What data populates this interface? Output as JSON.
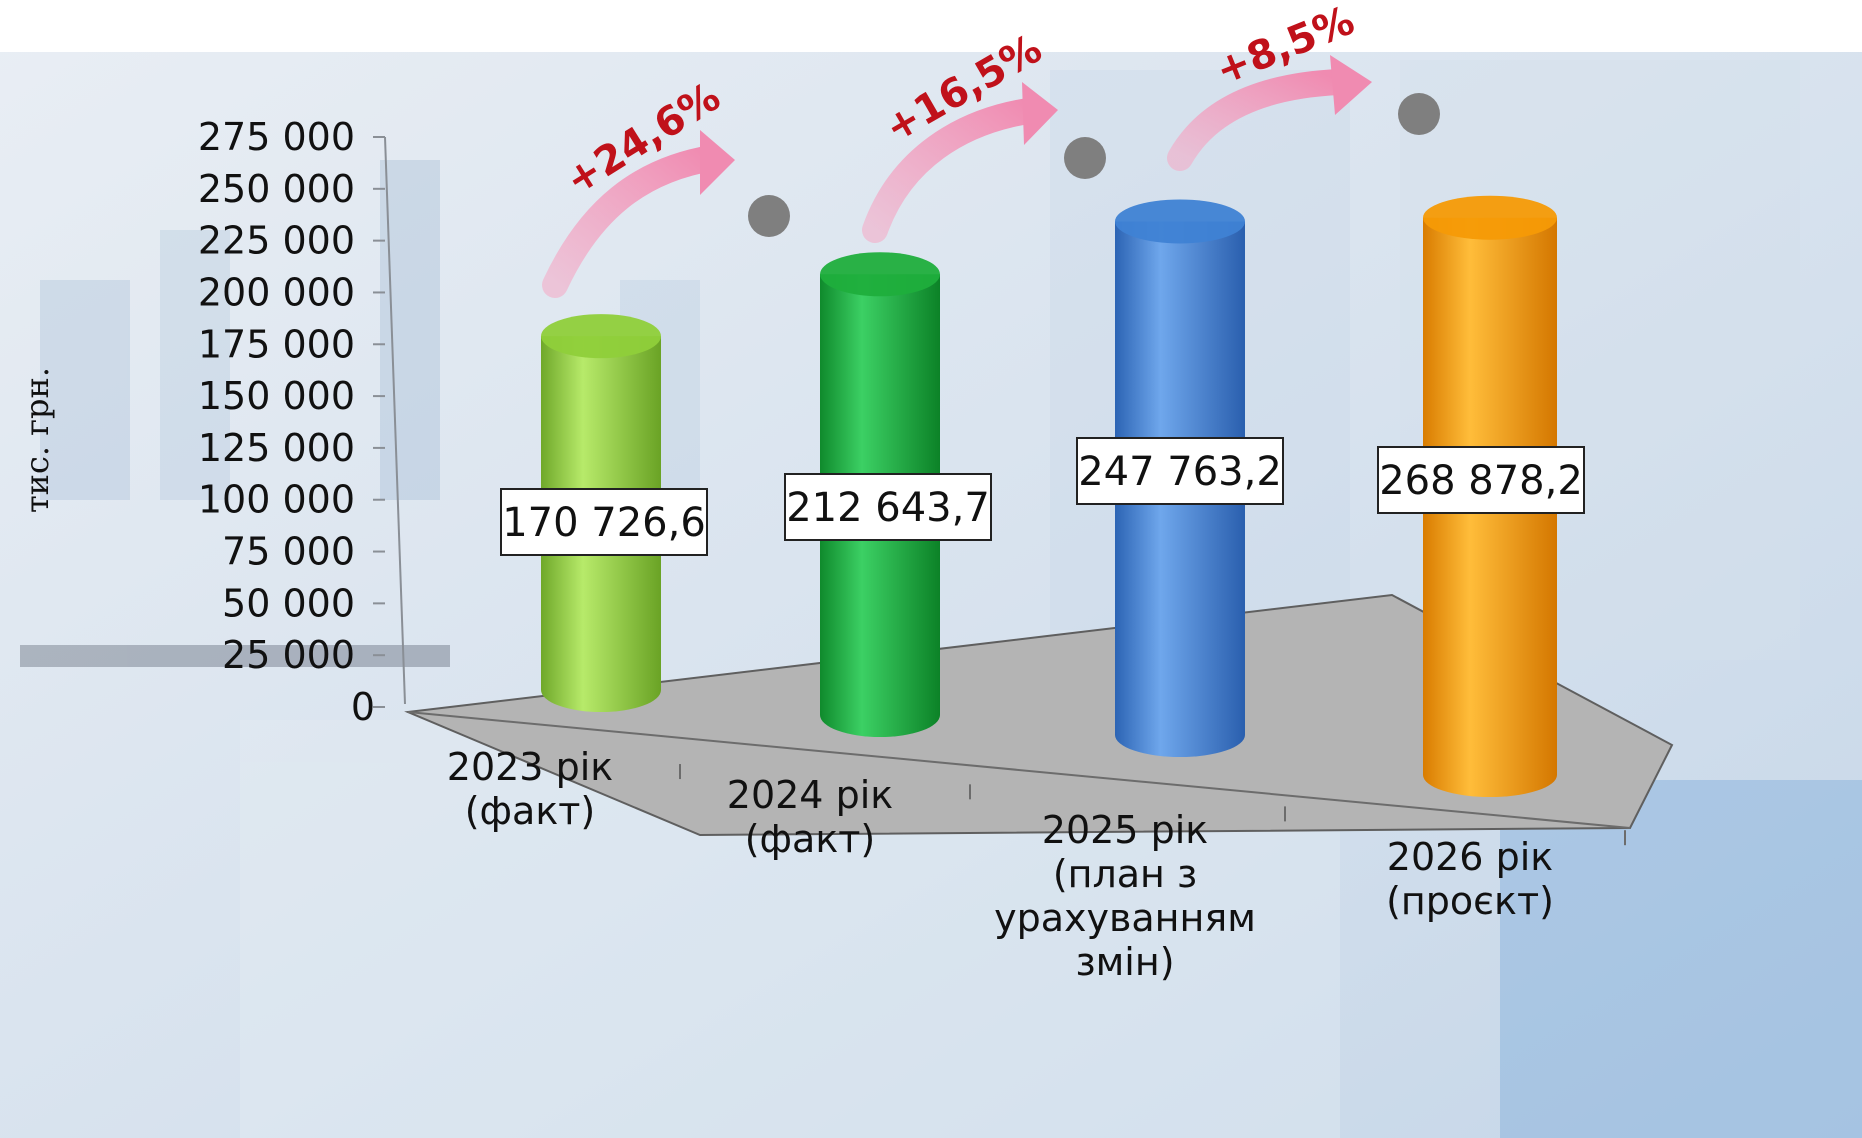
{
  "chart_data": {
    "type": "bar",
    "ylabel": "тис. грн.",
    "ylim": [
      0,
      275000
    ],
    "yticks": [
      "0",
      "25 000",
      "50 000",
      "75 000",
      "100 000",
      "125 000",
      "150 000",
      "175 000",
      "200 000",
      "225 000",
      "250 000",
      "275 000"
    ],
    "categories": [
      [
        "2023 рік",
        "(факт)"
      ],
      [
        "2024 рік",
        "(факт)"
      ],
      [
        "2025 рік",
        "(план з",
        "урахуванням",
        "змін)"
      ],
      [
        "2026 рік",
        "(проєкт)"
      ]
    ],
    "values": [
      170726.6,
      212643.7,
      247763.2,
      268878.2
    ],
    "value_labels": [
      "170 726,6",
      "212 643,7",
      "247 763,2",
      "268 878,2"
    ],
    "colors": [
      "#8fcf3a",
      "#1fae3c",
      "#3f82d4",
      "#f59a06"
    ],
    "growth_labels": [
      "+24,6%",
      "+16,5%",
      "+8,5%"
    ]
  }
}
